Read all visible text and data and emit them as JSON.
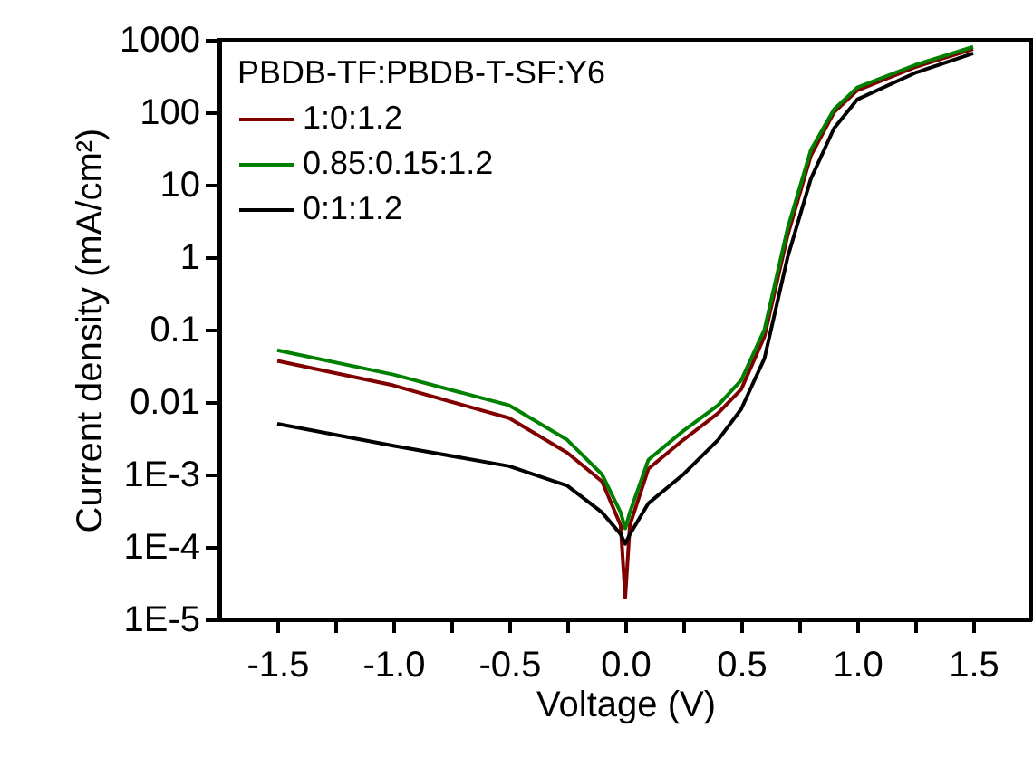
{
  "chart_data": {
    "type": "line",
    "xlabel": "Voltage (V)",
    "ylabel": "Current density (mA/cm²)",
    "legend_title": "PBDB-TF:PBDB-T-SF:Y6",
    "legend": "top left",
    "log": "y",
    "grid": false,
    "x": [
      -1.5,
      -1.0,
      -0.5,
      -0.25,
      -0.1,
      -0.02,
      0,
      0.02,
      0.1,
      0.25,
      0.4,
      0.5,
      0.6,
      0.7,
      0.8,
      0.9,
      1.0,
      1.25,
      1.5
    ],
    "series": [
      {
        "name": "1:0:1.2",
        "color": "#800000",
        "values": [
          0.037,
          0.017,
          0.006,
          0.002,
          0.0008,
          0.0002,
          2e-05,
          0.0002,
          0.0012,
          0.003,
          0.007,
          0.015,
          0.08,
          2,
          25,
          100,
          200,
          420,
          750
        ]
      },
      {
        "name": "0.85:0.15:1.2",
        "color": "#008000",
        "values": [
          0.052,
          0.024,
          0.009,
          0.003,
          0.001,
          0.0003,
          0.00018,
          0.0003,
          0.0016,
          0.004,
          0.009,
          0.02,
          0.1,
          2.5,
          30,
          110,
          220,
          450,
          800
        ]
      },
      {
        "name": "0:1:1.2",
        "color": "#000000",
        "values": [
          0.005,
          0.0025,
          0.0013,
          0.0007,
          0.0003,
          0.00015,
          0.00011,
          0.00015,
          0.0004,
          0.001,
          0.003,
          0.008,
          0.04,
          1,
          12,
          60,
          150,
          350,
          650
        ]
      }
    ],
    "xlim": [
      -1.75,
      1.75
    ],
    "xticks": [
      {
        "value": -1.5,
        "label": "-1.5"
      },
      {
        "value": -1.25,
        "label": null
      },
      {
        "value": -1,
        "label": "-1.0"
      },
      {
        "value": -0.75,
        "label": null
      },
      {
        "value": -0.5,
        "label": "-0.5"
      },
      {
        "value": -0.25,
        "label": null
      },
      {
        "value": 0,
        "label": "0.0"
      },
      {
        "value": 0.25,
        "label": null
      },
      {
        "value": 0.5,
        "label": "0.5"
      },
      {
        "value": 0.75,
        "label": null
      },
      {
        "value": 1,
        "label": "1.0"
      },
      {
        "value": 1.25,
        "label": null
      },
      {
        "value": 1.5,
        "label": "1.5"
      }
    ],
    "ylim": [
      1e-05,
      1000
    ],
    "yticks": [
      {
        "value": 1e-05,
        "label": "1E-5"
      },
      {
        "value": 0.0001,
        "label": "1E-4"
      },
      {
        "value": 0.001,
        "label": "1E-3"
      },
      0.01,
      0.1,
      1,
      10,
      100,
      1000
    ]
  }
}
